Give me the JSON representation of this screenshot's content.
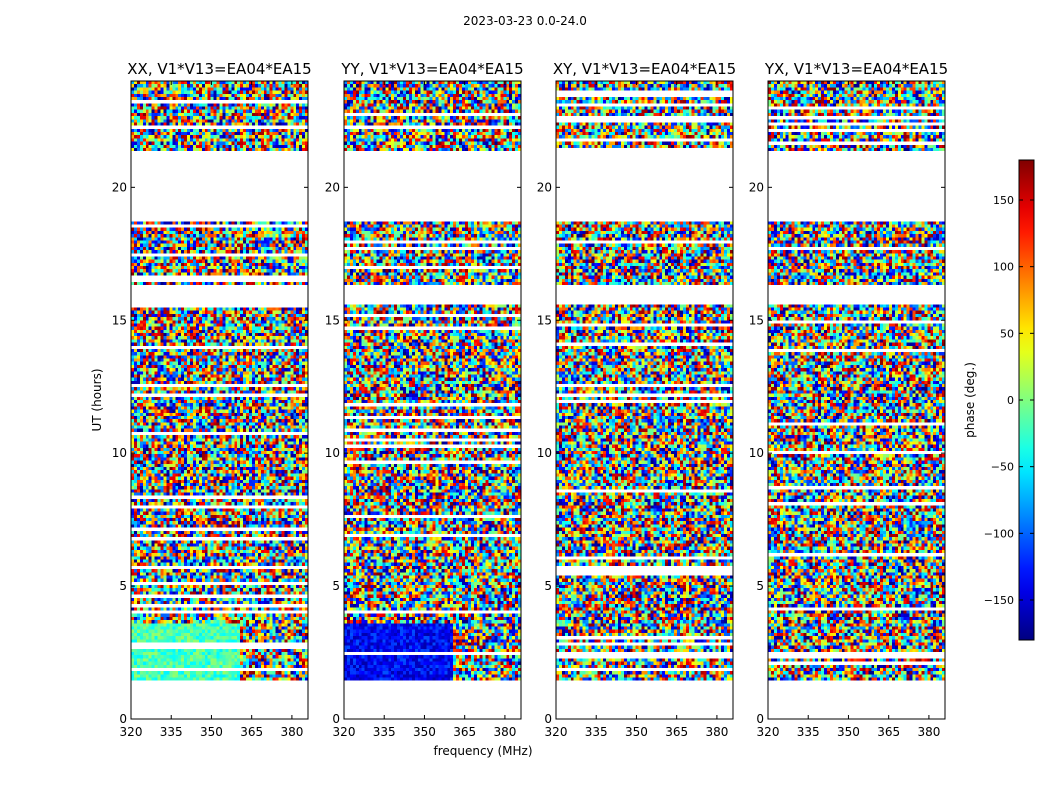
{
  "figure": {
    "suptitle": "2023-03-23 0.0-24.0"
  },
  "chart_data": {
    "type": "heatmap",
    "shared": {
      "xlabel": "frequency (MHz)",
      "ylabel": "UT (hours)",
      "xlim": [
        320,
        386
      ],
      "ylim": [
        0,
        24
      ],
      "xticks": [
        320,
        335,
        350,
        365,
        380
      ],
      "yticks": [
        0,
        5,
        10,
        15,
        20
      ],
      "valid_bands_hours": [
        [
          1.5,
          3.6
        ],
        [
          3.6,
          14.6
        ],
        [
          14.6,
          15.6
        ],
        [
          16.3,
          18.7
        ],
        [
          21.4,
          24.0
        ]
      ],
      "frequency_split_mhz": 361
    },
    "panels": [
      {
        "title": "XX, V1*V13=EA04*EA15",
        "pol": "XX",
        "coherent_phase_deg": -20,
        "coherent_band_hours": [
          1.5,
          3.6
        ]
      },
      {
        "title": "YY, V1*V13=EA04*EA15",
        "pol": "YY",
        "coherent_phase_deg": -135,
        "coherent_band_hours": [
          1.5,
          3.6
        ]
      },
      {
        "title": "XY, V1*V13=EA04*EA15",
        "pol": "XY",
        "coherent_phase_deg": null,
        "coherent_band_hours": null
      },
      {
        "title": "YX, V1*V13=EA04*EA15",
        "pol": "YX",
        "coherent_phase_deg": null,
        "coherent_band_hours": null
      }
    ],
    "colorbar": {
      "label": "phase (deg.)",
      "range": [
        -180,
        180
      ],
      "ticks": [
        150,
        100,
        50,
        0,
        -50,
        -100,
        -150
      ],
      "tick_labels": [
        "150",
        "100",
        "50",
        "0",
        "−50",
        "−100",
        "−150"
      ],
      "colormap": "jet"
    }
  }
}
